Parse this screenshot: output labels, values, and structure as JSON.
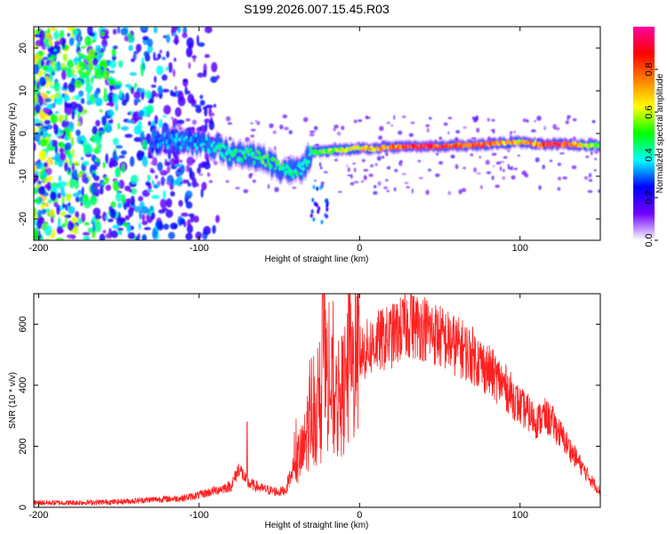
{
  "figure_title": "S199.2026.007.15.45.R03",
  "chart_data": [
    {
      "type": "heatmap",
      "xlabel": "Height of straight line (km)",
      "ylabel": "Frequency (Hz)",
      "xlim": [
        -203,
        150
      ],
      "ylim": [
        -25,
        25
      ],
      "xticks": [
        -200,
        -100,
        0,
        100
      ],
      "xtick_labels": [
        "-200",
        "-100",
        "0",
        "100"
      ],
      "yticks": [
        -20,
        -10,
        0,
        10,
        20
      ],
      "ytick_labels": [
        "-20",
        "-10",
        "0",
        "10",
        "20"
      ],
      "colorbar": {
        "label": "Normalized spectral amplitude",
        "range": [
          0,
          1
        ],
        "ticks": [
          0.0,
          0.2,
          0.4,
          0.6,
          0.8
        ],
        "tick_labels": [
          "0.0",
          "0.2",
          "0.4",
          "0.6",
          "0.8"
        ],
        "stops": [
          "#ffffff",
          "#7000ff",
          "#0000ff",
          "#00ffff",
          "#00ff00",
          "#ffff00",
          "#ff8000",
          "#ff0000",
          "#ff00a0"
        ]
      },
      "ridge": {
        "description_x": [
          -130,
          -110,
          -100,
          -90,
          -80,
          -70,
          -60,
          -50,
          -40,
          -35,
          -30,
          -20,
          -10,
          0,
          10,
          20,
          30,
          40,
          50,
          60,
          70,
          80,
          90,
          100,
          110,
          120,
          130,
          140,
          150
        ],
        "frequency": [
          -1.5,
          -2,
          -2,
          -3,
          -5,
          -5,
          -6,
          -8,
          -9,
          -8,
          -4.5,
          -4,
          -3.8,
          -3.5,
          -3.5,
          -3.2,
          -3,
          -3,
          -3,
          -2.8,
          -2.8,
          -2.5,
          -2.2,
          -2,
          -2.5,
          -2.5,
          -2.5,
          -2.8,
          -2.8
        ],
        "amplitude": [
          0.3,
          0.35,
          0.35,
          0.4,
          0.45,
          0.45,
          0.5,
          0.5,
          0.45,
          0.4,
          0.5,
          0.55,
          0.6,
          0.65,
          0.7,
          0.75,
          0.85,
          0.9,
          0.85,
          0.8,
          0.8,
          0.85,
          0.75,
          0.7,
          0.75,
          0.9,
          0.85,
          0.6,
          0.5
        ]
      }
    },
    {
      "type": "line",
      "xlabel": "Height of straight line (km)",
      "ylabel": "SNR (10 * v/v)",
      "xlim": [
        -203,
        150
      ],
      "ylim": [
        0,
        700
      ],
      "xticks": [
        -200,
        -100,
        0,
        100
      ],
      "xtick_labels": [
        "-200",
        "-100",
        "0",
        "100"
      ],
      "yticks": [
        0,
        200,
        400,
        600
      ],
      "ytick_labels": [
        "0",
        "200",
        "400",
        "600"
      ],
      "color": "#ff2020",
      "envelope_x": [
        -203,
        -180,
        -150,
        -130,
        -110,
        -100,
        -90,
        -80,
        -75,
        -70,
        -60,
        -50,
        -45,
        -40,
        -35,
        -30,
        -25,
        -22,
        -20,
        -15,
        -10,
        -5,
        0,
        10,
        20,
        30,
        40,
        50,
        60,
        70,
        80,
        90,
        100,
        105,
        110,
        115,
        120,
        130,
        140,
        150
      ],
      "envelope_y": [
        15,
        15,
        18,
        25,
        30,
        40,
        55,
        70,
        130,
        80,
        60,
        50,
        60,
        150,
        180,
        330,
        280,
        450,
        420,
        330,
        380,
        440,
        500,
        540,
        560,
        600,
        590,
        560,
        530,
        500,
        450,
        400,
        330,
        310,
        280,
        300,
        280,
        200,
        120,
        50
      ],
      "peaks": [
        {
          "x": -23,
          "y": 700
        },
        {
          "x": 32,
          "y": 700
        },
        {
          "x": -70,
          "y": 280
        }
      ]
    }
  ]
}
